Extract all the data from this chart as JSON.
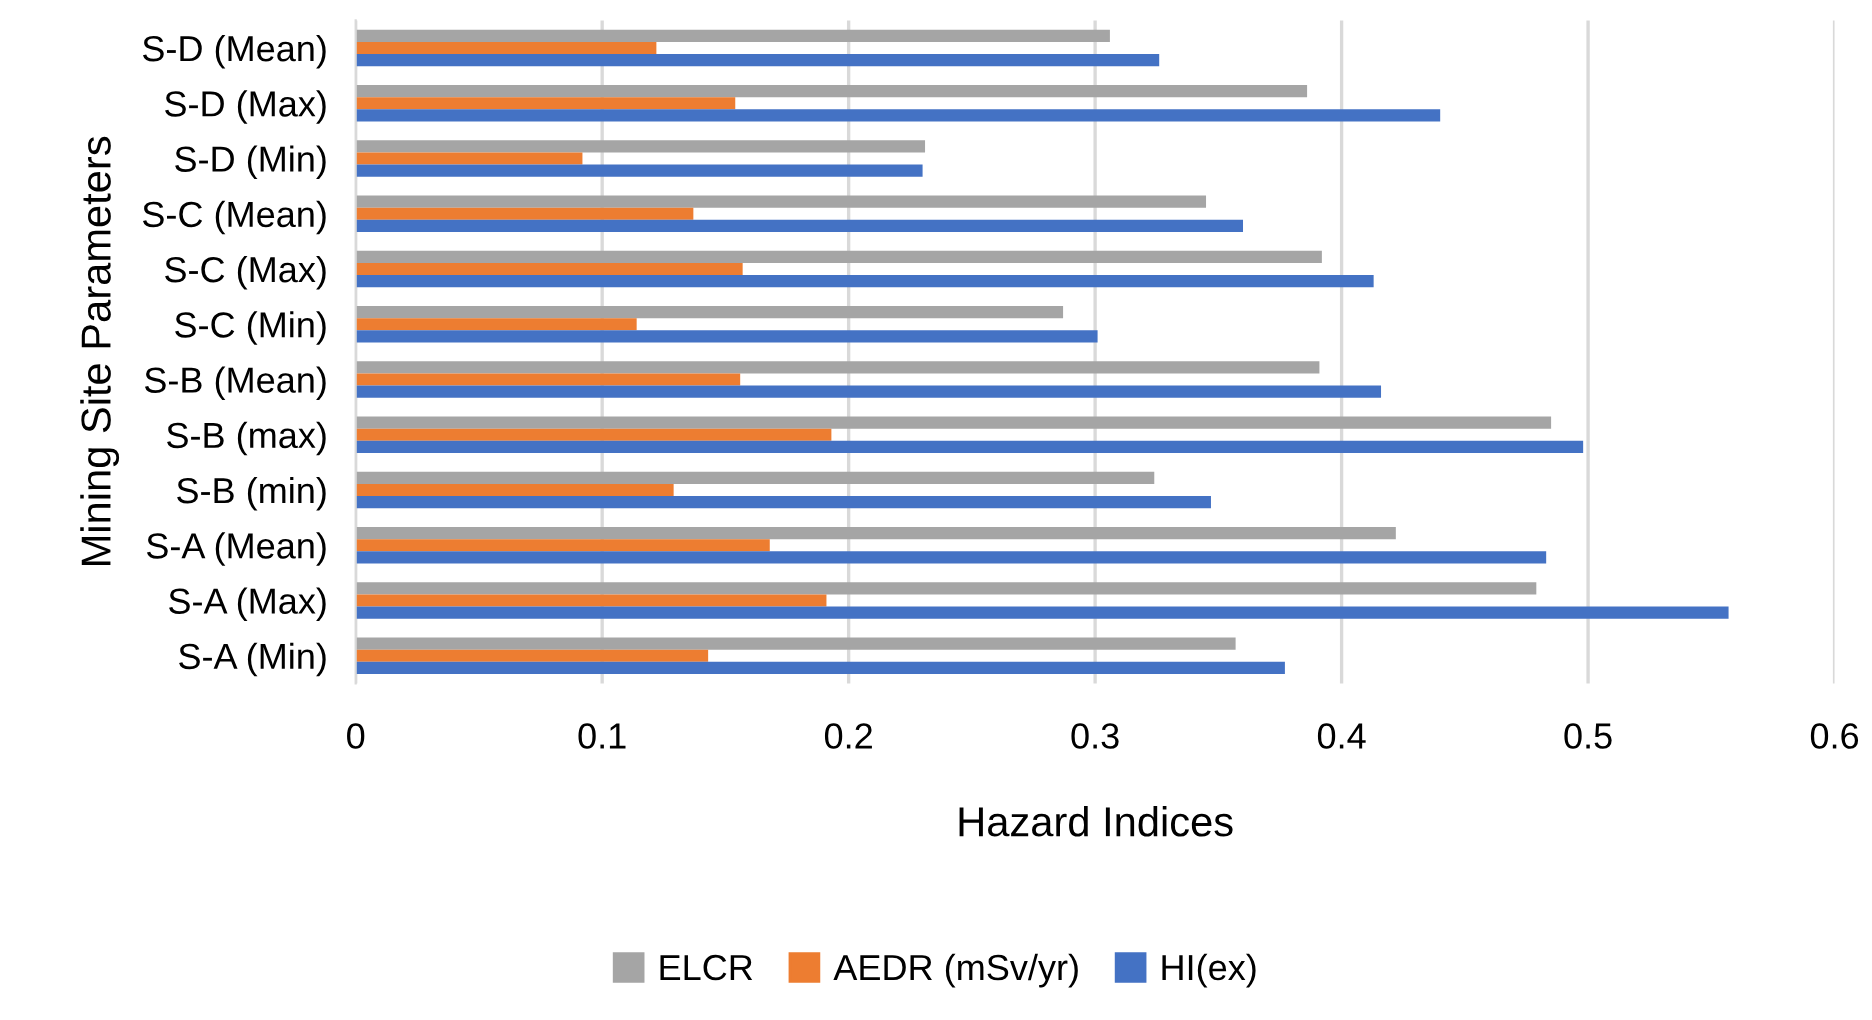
{
  "chart_data": {
    "type": "bar",
    "orientation": "horizontal",
    "xlabel": "Hazard Indices",
    "ylabel": "Mining Site Parameters",
    "categories": [
      "S-D (Mean)",
      "S-D (Max)",
      "S-D (Min)",
      "S-C (Mean)",
      "S-C (Max)",
      "S-C (Min)",
      "S-B (Mean)",
      "S-B (max)",
      "S-B (min)",
      "S-A (Mean)",
      "S-A (Max)",
      "S-A (Min)"
    ],
    "series": [
      {
        "name": "ELCR",
        "color": "#a5a5a5",
        "values": [
          0.306,
          0.386,
          0.231,
          0.345,
          0.392,
          0.287,
          0.391,
          0.485,
          0.324,
          0.422,
          0.479,
          0.357
        ]
      },
      {
        "name": "AEDR (mSv/yr)",
        "color": "#ed7d31",
        "values": [
          0.122,
          0.154,
          0.092,
          0.137,
          0.157,
          0.114,
          0.156,
          0.193,
          0.129,
          0.168,
          0.191,
          0.143
        ]
      },
      {
        "name": "HI(ex)",
        "color": "#4472c4",
        "values": [
          0.326,
          0.44,
          0.23,
          0.36,
          0.413,
          0.301,
          0.416,
          0.498,
          0.347,
          0.483,
          0.557,
          0.377
        ]
      }
    ],
    "xlim": [
      0,
      0.6
    ],
    "xticks": [
      0,
      0.1,
      0.2,
      0.3,
      0.4,
      0.5,
      0.6
    ],
    "grid": "x",
    "legend": "bottom"
  }
}
